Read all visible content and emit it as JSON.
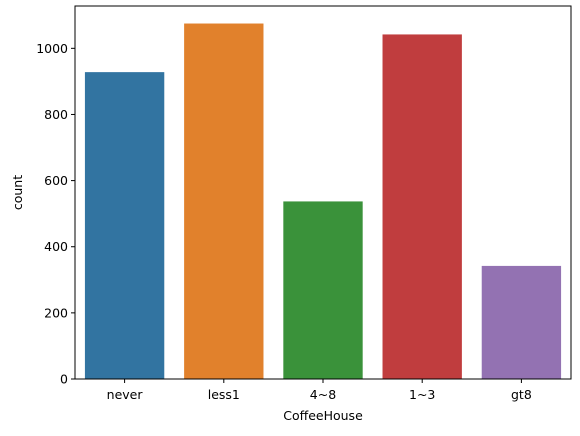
{
  "chart_data": {
    "type": "bar",
    "title": "",
    "xlabel": "CoffeeHouse",
    "ylabel": "count",
    "categories": [
      "never",
      "less1",
      "4~8",
      "1~3",
      "gt8"
    ],
    "values": [
      928,
      1075,
      537,
      1042,
      342
    ],
    "colors": [
      "#3274a1",
      "#e1812c",
      "#3a923a",
      "#c03d3e",
      "#9372b2"
    ],
    "ylim": [
      0,
      1128
    ],
    "yticks": [
      0,
      200,
      400,
      600,
      800,
      1000
    ],
    "grid": false,
    "legend": "none"
  }
}
